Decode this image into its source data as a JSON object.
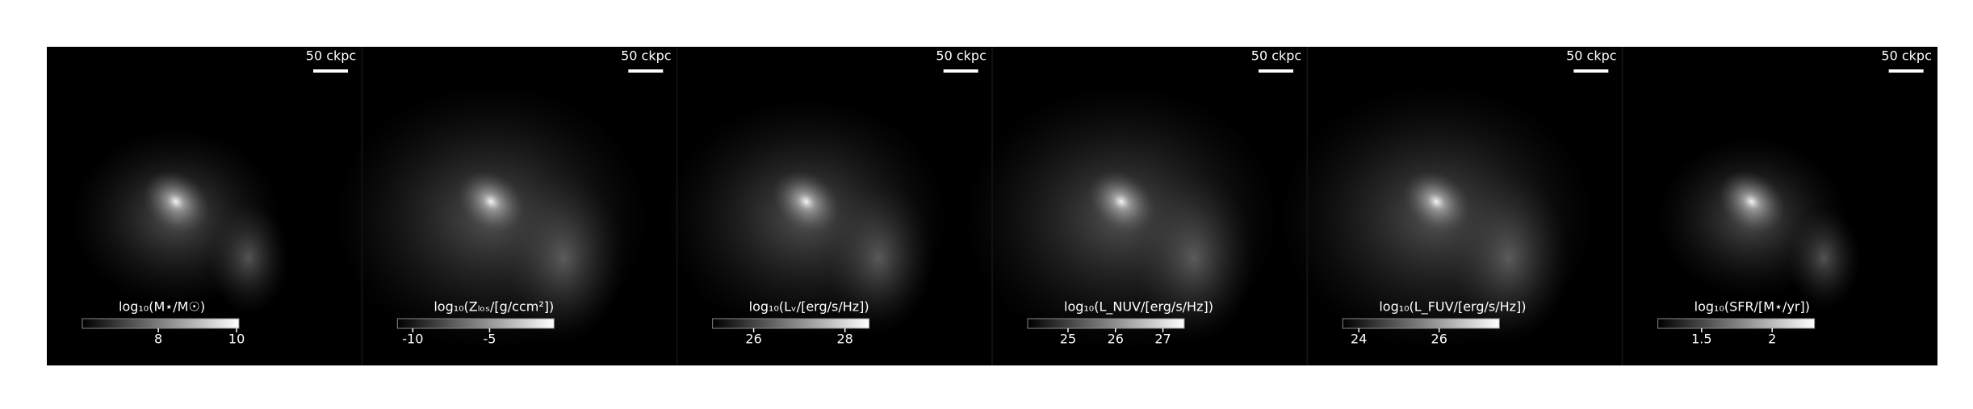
{
  "panels": [
    {
      "scale_bar": "50 ckpc",
      "colorbar": {
        "label": "log₁₀(M⋆/M☉)",
        "lim": [
          6.06,
          10.06
        ],
        "ticks": [
          8,
          10
        ]
      }
    },
    {
      "scale_bar": "50 ckpc",
      "colorbar": {
        "label": "log₁₀(Zₗₒₛ/[g/ccm²])",
        "lim": [
          -11,
          -0.8
        ],
        "ticks": [
          -10,
          -5
        ]
      }
    },
    {
      "scale_bar": "50 ckpc",
      "colorbar": {
        "label": "log₁₀(Lᵥ/[erg/s/Hz])",
        "lim": [
          25.1,
          28.53
        ],
        "ticks": [
          26,
          28
        ]
      }
    },
    {
      "scale_bar": "50 ckpc",
      "colorbar": {
        "label": "log₁₀(L_NUV/[erg/s/Hz])",
        "lim": [
          24.15,
          27.45
        ],
        "ticks": [
          25,
          26,
          27
        ]
      }
    },
    {
      "scale_bar": "50 ckpc",
      "colorbar": {
        "label": "log₁₀(L_FUV/[erg/s/Hz])",
        "lim": [
          23.6,
          27.5
        ],
        "ticks": [
          24,
          26
        ]
      }
    },
    {
      "scale_bar": "50 ckpc",
      "colorbar": {
        "label": "log₁₀(SFR/[M⋆/yr])",
        "lim": [
          1.19,
          2.3
        ],
        "ticks": [
          1.5,
          2.0
        ]
      }
    }
  ]
}
